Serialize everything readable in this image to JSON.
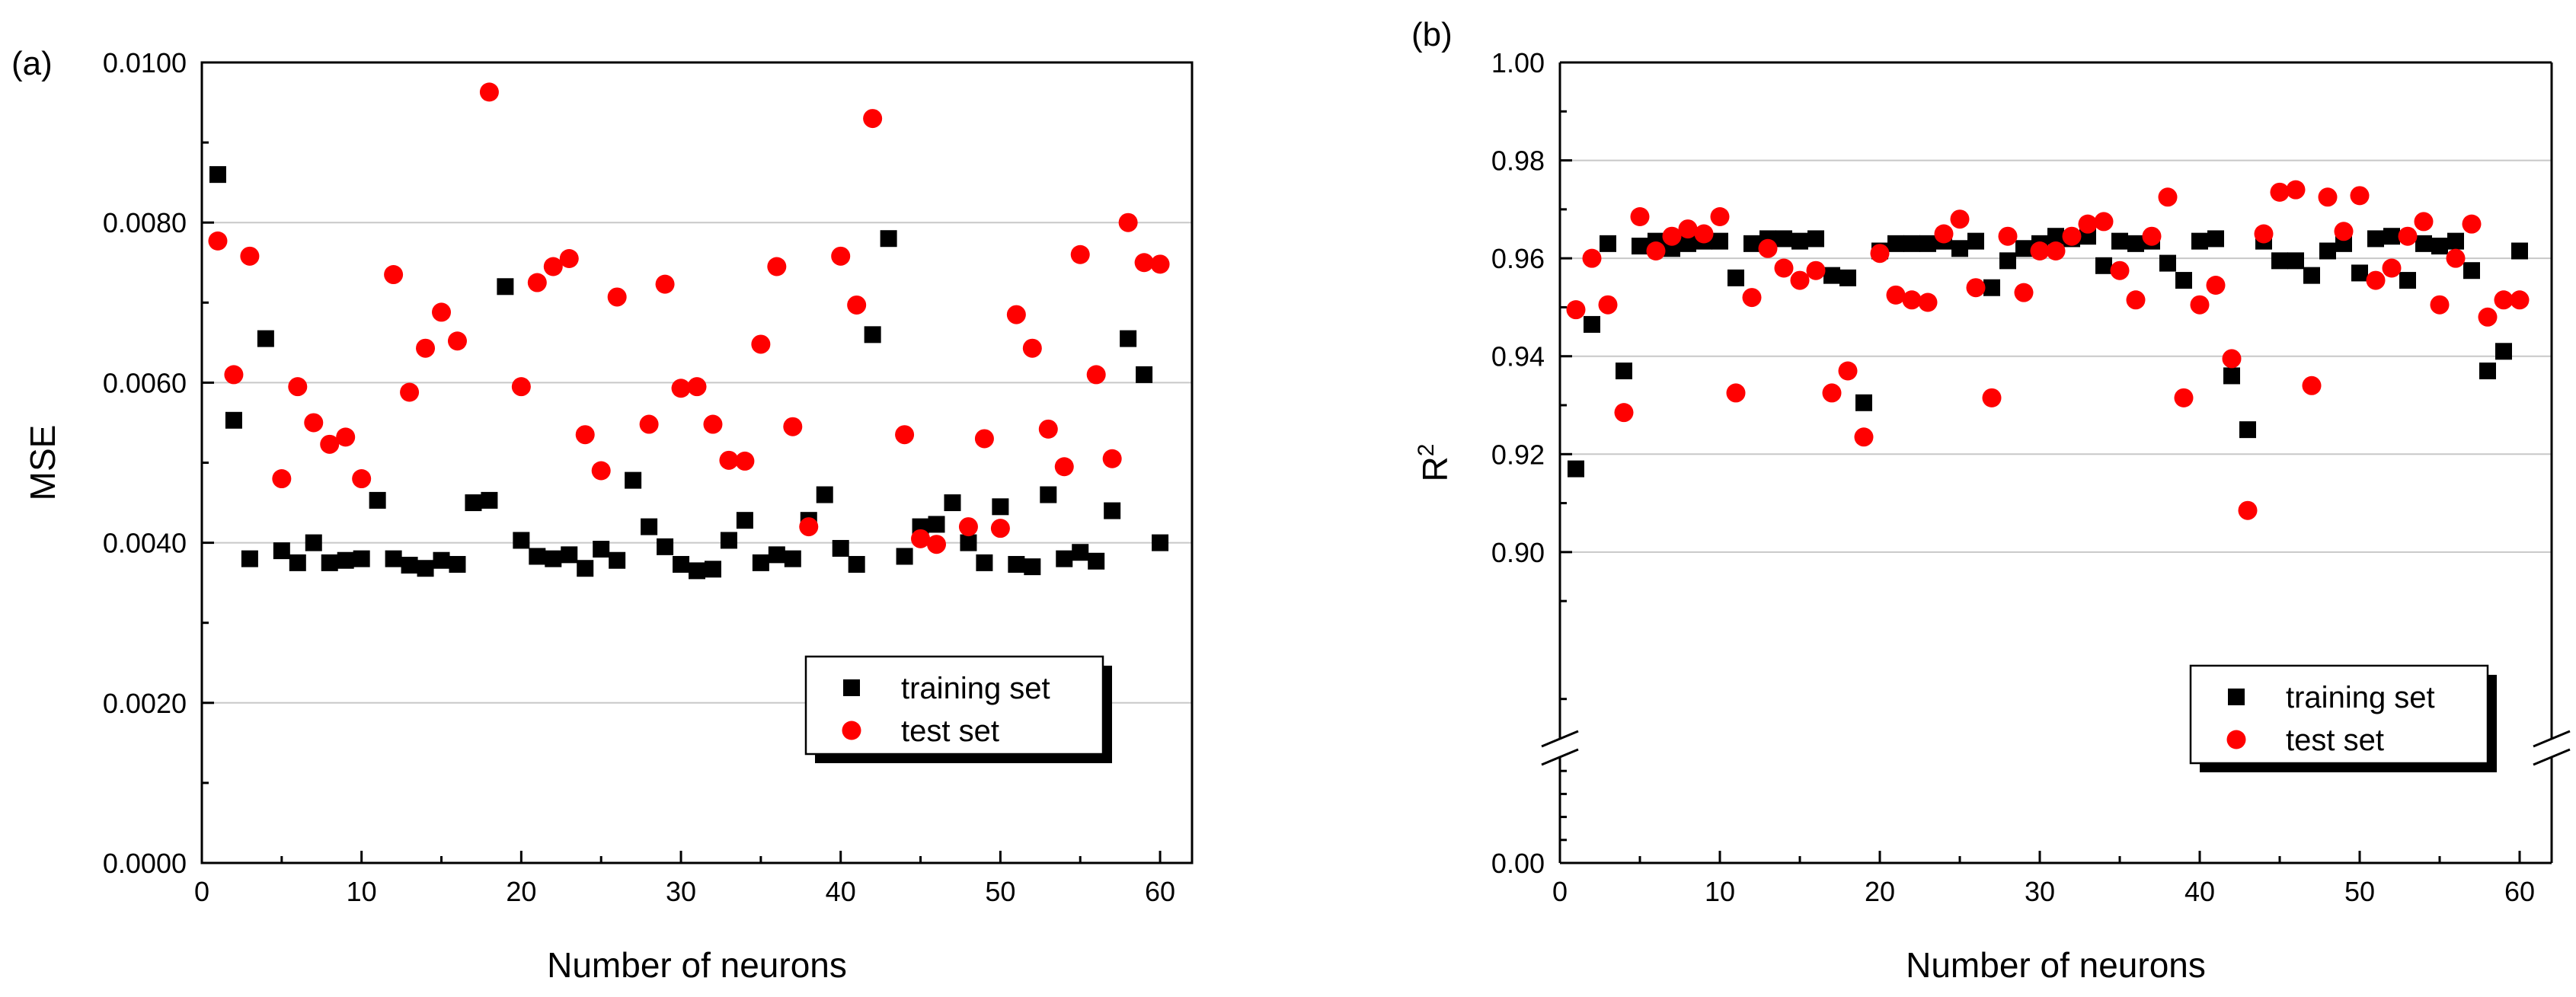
{
  "colors": {
    "training": "#000000",
    "test": "#ff0000",
    "grid": "#c8c8c8"
  },
  "chart_data": [
    {
      "type": "scatter",
      "panel_label": "(a)",
      "xlabel": "Number of neurons",
      "ylabel": "MSE",
      "xlim": [
        0,
        62
      ],
      "ylim": [
        0,
        0.01
      ],
      "xticks": [
        0,
        10,
        20,
        30,
        40,
        50,
        60
      ],
      "xtick_labels": [
        "0",
        "10",
        "20",
        "30",
        "40",
        "50",
        "60"
      ],
      "yticks": [
        0,
        0.002,
        0.004,
        0.006,
        0.008,
        0.01
      ],
      "ytick_labels": [
        "0.0000",
        "0.0020",
        "0.0040",
        "0.0060",
        "0.0080",
        "0.0100"
      ],
      "grid": true,
      "legend": {
        "position": "bottom-right",
        "entries": [
          "training set",
          "test set"
        ]
      },
      "series": [
        {
          "name": "training set",
          "marker": "square",
          "x": [
            1,
            2,
            3,
            4,
            5,
            6,
            7,
            8,
            9,
            10,
            11,
            12,
            13,
            14,
            15,
            16,
            17,
            18,
            19,
            20,
            21,
            22,
            23,
            24,
            25,
            26,
            27,
            28,
            29,
            30,
            31,
            32,
            33,
            34,
            35,
            36,
            37,
            38,
            39,
            40,
            41,
            42,
            43,
            44,
            45,
            46,
            47,
            48,
            49,
            50,
            51,
            52,
            53,
            54,
            55,
            56,
            57,
            58,
            59,
            60
          ],
          "y": [
            0.0086,
            0.00553,
            0.0038,
            0.00655,
            0.0039,
            0.00375,
            0.004,
            0.00375,
            0.00378,
            0.0038,
            0.00453,
            0.0038,
            0.00372,
            0.00368,
            0.00378,
            0.00373,
            0.0045,
            0.00453,
            0.0072,
            0.00403,
            0.00383,
            0.0038,
            0.00385,
            0.00368,
            0.00392,
            0.00378,
            0.00478,
            0.0042,
            0.00395,
            0.00373,
            0.00365,
            0.00367,
            0.00403,
            0.00428,
            0.00375,
            0.00385,
            0.0038,
            0.00428,
            0.0046,
            0.00393,
            0.00373,
            0.0066,
            0.0078,
            0.00383,
            0.0042,
            0.00423,
            0.0045,
            0.004,
            0.00375,
            0.00445,
            0.00373,
            0.0037,
            0.0046,
            0.0038,
            0.00388,
            0.00377,
            0.0044,
            0.00655,
            0.0061,
            0.004
          ]
        },
        {
          "name": "test set",
          "marker": "circle",
          "x": [
            1,
            2,
            3,
            5,
            6,
            7,
            8,
            9,
            10,
            12,
            13,
            14,
            15,
            16,
            18,
            20,
            21,
            22,
            23,
            24,
            25,
            26,
            28,
            29,
            30,
            31,
            32,
            33,
            34,
            35,
            36,
            37,
            38,
            40,
            41,
            42,
            44,
            45,
            46,
            48,
            49,
            50,
            51,
            52,
            53,
            54,
            55,
            56,
            57,
            58,
            59,
            60
          ],
          "y": [
            0.00777,
            0.0061,
            0.00758,
            0.0048,
            0.00595,
            0.0055,
            0.00523,
            0.00532,
            0.0048,
            0.00735,
            0.00588,
            0.00643,
            0.00688,
            0.00652,
            0.00963,
            0.00595,
            0.00725,
            0.00745,
            0.00755,
            0.00535,
            0.0049,
            0.00707,
            0.00548,
            0.00723,
            0.00593,
            0.00595,
            0.00548,
            0.00503,
            0.00502,
            0.00648,
            0.00745,
            0.00545,
            0.0042,
            0.00758,
            0.00697,
            0.0093,
            0.00535,
            0.00405,
            0.00398,
            0.0042,
            0.0053,
            0.00418,
            0.00685,
            0.00643,
            0.00542,
            0.00495,
            0.0076,
            0.0061,
            0.00505,
            0.008,
            0.0075,
            0.00748
          ]
        }
      ]
    },
    {
      "type": "scatter",
      "panel_label": "(b)",
      "xlabel": "Number of neurons",
      "ylabel": "R",
      "ylabel_superscript": "2",
      "xlim": [
        0,
        62
      ],
      "ylim": [
        0.86,
        1.0
      ],
      "axis_break": [
        0.0,
        0.86
      ],
      "xticks": [
        0,
        10,
        20,
        30,
        40,
        50,
        60
      ],
      "xtick_labels": [
        "0",
        "10",
        "20",
        "30",
        "40",
        "50",
        "60"
      ],
      "yticks": [
        0.0,
        0.9,
        0.92,
        0.94,
        0.96,
        0.98,
        1.0
      ],
      "ytick_labels": [
        "0.00",
        "0.90",
        "0.92",
        "0.94",
        "0.96",
        "0.98",
        "1.00"
      ],
      "grid": true,
      "legend": {
        "position": "bottom-right",
        "entries": [
          "training set",
          "test set"
        ]
      },
      "series": [
        {
          "name": "training set",
          "marker": "square",
          "x": [
            1,
            2,
            3,
            4,
            5,
            6,
            7,
            8,
            9,
            10,
            11,
            12,
            13,
            14,
            15,
            16,
            17,
            18,
            19,
            20,
            21,
            22,
            23,
            24,
            25,
            26,
            27,
            28,
            29,
            30,
            31,
            32,
            33,
            34,
            35,
            36,
            37,
            38,
            39,
            40,
            41,
            42,
            43,
            44,
            45,
            46,
            47,
            48,
            49,
            50,
            51,
            52,
            53,
            54,
            55,
            56,
            57,
            58,
            59,
            60
          ],
          "y": [
            0.917,
            0.9465,
            0.963,
            0.937,
            0.9625,
            0.9635,
            0.962,
            0.963,
            0.9635,
            0.9635,
            0.956,
            0.963,
            0.964,
            0.964,
            0.9635,
            0.964,
            0.9565,
            0.956,
            0.9305,
            0.9615,
            0.963,
            0.963,
            0.963,
            0.9635,
            0.962,
            0.9635,
            0.954,
            0.9595,
            0.962,
            0.963,
            0.9645,
            0.964,
            0.9645,
            0.9585,
            0.9635,
            0.963,
            0.9635,
            0.959,
            0.9555,
            0.9635,
            0.964,
            0.936,
            0.925,
            0.9635,
            0.9595,
            0.9595,
            0.9565,
            0.9615,
            0.963,
            0.957,
            0.964,
            0.9645,
            0.9555,
            0.963,
            0.9625,
            0.9635,
            0.9575,
            0.937,
            0.941,
            0.9615
          ]
        },
        {
          "name": "test set",
          "marker": "circle",
          "x": [
            1,
            2,
            3,
            4,
            5,
            6,
            7,
            8,
            9,
            10,
            11,
            12,
            13,
            14,
            15,
            16,
            17,
            18,
            19,
            20,
            21,
            22,
            23,
            24,
            25,
            26,
            27,
            28,
            29,
            30,
            31,
            32,
            33,
            34,
            35,
            36,
            37,
            38,
            39,
            40,
            41,
            42,
            43,
            44,
            45,
            46,
            47,
            48,
            49,
            50,
            51,
            52,
            53,
            54,
            55,
            56,
            57,
            58,
            59,
            60
          ],
          "y": [
            0.9495,
            0.96,
            0.9505,
            0.9285,
            0.9685,
            0.9615,
            0.9645,
            0.966,
            0.965,
            0.9685,
            0.9325,
            0.952,
            0.962,
            0.958,
            0.9555,
            0.9575,
            0.9325,
            0.937,
            0.9235,
            0.961,
            0.9525,
            0.9515,
            0.951,
            0.965,
            0.968,
            0.954,
            0.9315,
            0.9645,
            0.953,
            0.9615,
            0.9615,
            0.9645,
            0.967,
            0.9675,
            0.9575,
            0.9515,
            0.9645,
            0.9725,
            0.9315,
            0.9505,
            0.9545,
            0.9395,
            0.9085,
            0.965,
            0.9735,
            0.974,
            0.934,
            0.9725,
            0.9655,
            0.9728,
            0.9555,
            0.958,
            0.9645,
            0.9675,
            0.9505,
            0.96,
            0.967,
            0.948,
            0.9515,
            0.9515
          ]
        }
      ]
    }
  ]
}
